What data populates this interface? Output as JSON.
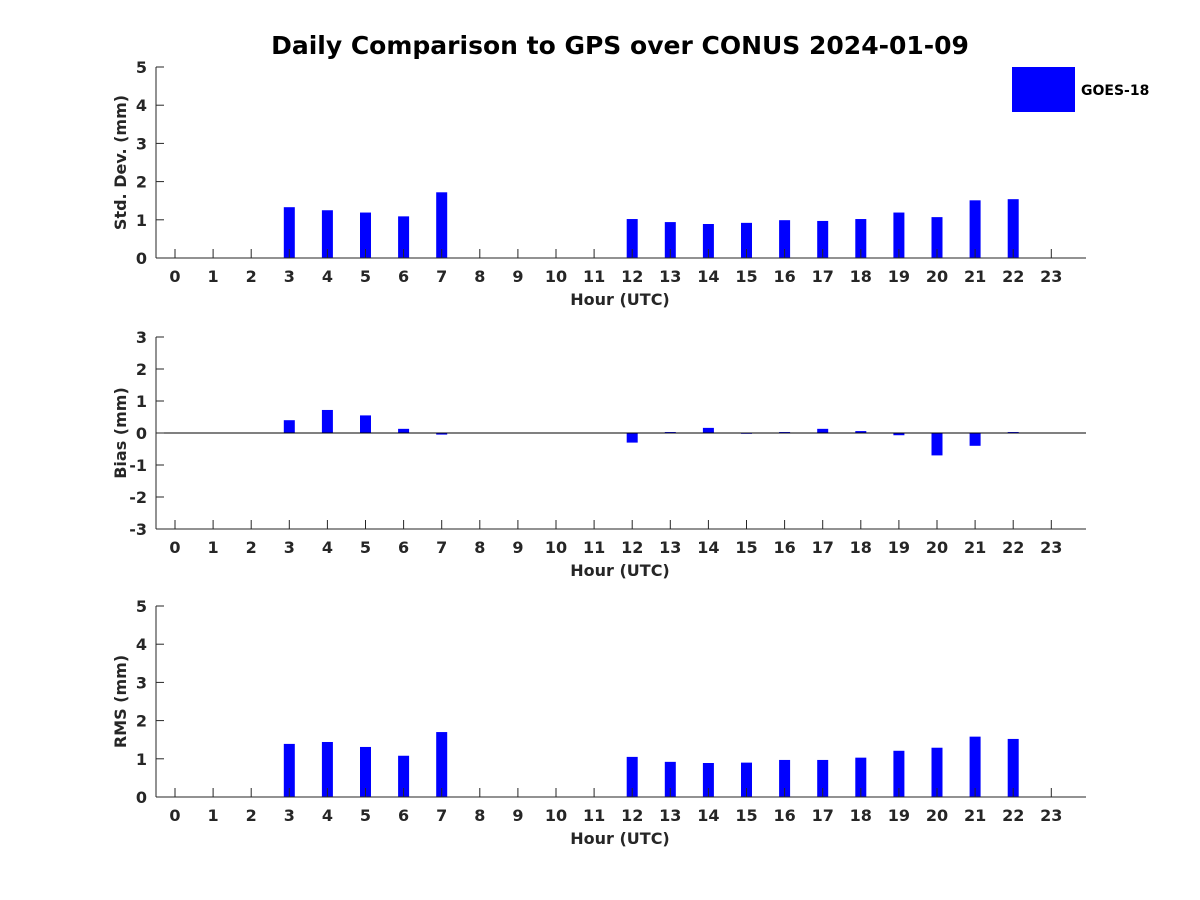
{
  "title": "Daily Comparison to GPS over CONUS 2024-01-09",
  "legend": {
    "label": "GOES-18",
    "placement": "top-right"
  },
  "colors": {
    "bar": "#0000ff",
    "axis": "#262626",
    "text": "#262626",
    "background": "#ffffff"
  },
  "chart_data": [
    {
      "type": "bar",
      "ylabel": "Std. Dev. (mm)",
      "xlabel": "Hour (UTC)",
      "ylim": [
        0,
        5
      ],
      "yticks": [
        "0",
        "1",
        "2",
        "3",
        "4",
        "5"
      ],
      "categories": [
        "0",
        "1",
        "2",
        "3",
        "4",
        "5",
        "6",
        "7",
        "8",
        "9",
        "10",
        "11",
        "12",
        "13",
        "14",
        "15",
        "16",
        "17",
        "18",
        "19",
        "20",
        "21",
        "22",
        "23"
      ],
      "series": [
        {
          "name": "GOES-18",
          "values": [
            null,
            null,
            null,
            1.33,
            1.25,
            1.19,
            1.09,
            1.72,
            null,
            null,
            null,
            null,
            1.02,
            0.94,
            0.89,
            0.92,
            0.99,
            0.97,
            1.02,
            1.19,
            1.07,
            1.51,
            1.54,
            null
          ]
        }
      ]
    },
    {
      "type": "bar",
      "ylabel": "Bias (mm)",
      "xlabel": "Hour (UTC)",
      "ylim": [
        -3,
        3
      ],
      "yticks": [
        "-3",
        "-2",
        "-1",
        "0",
        "1",
        "2",
        "3"
      ],
      "categories": [
        "0",
        "1",
        "2",
        "3",
        "4",
        "5",
        "6",
        "7",
        "8",
        "9",
        "10",
        "11",
        "12",
        "13",
        "14",
        "15",
        "16",
        "17",
        "18",
        "19",
        "20",
        "21",
        "22",
        "23"
      ],
      "series": [
        {
          "name": "GOES-18",
          "values": [
            null,
            null,
            null,
            0.4,
            0.72,
            0.55,
            0.13,
            -0.05,
            null,
            null,
            null,
            null,
            -0.3,
            0.03,
            0.16,
            -0.02,
            0.03,
            0.13,
            0.06,
            -0.07,
            -0.7,
            -0.4,
            0.03,
            null
          ]
        }
      ]
    },
    {
      "type": "bar",
      "ylabel": "RMS (mm)",
      "xlabel": "Hour (UTC)",
      "ylim": [
        0,
        5
      ],
      "yticks": [
        "0",
        "1",
        "2",
        "3",
        "4",
        "5"
      ],
      "categories": [
        "0",
        "1",
        "2",
        "3",
        "4",
        "5",
        "6",
        "7",
        "8",
        "9",
        "10",
        "11",
        "12",
        "13",
        "14",
        "15",
        "16",
        "17",
        "18",
        "19",
        "20",
        "21",
        "22",
        "23"
      ],
      "series": [
        {
          "name": "GOES-18",
          "values": [
            null,
            null,
            null,
            1.39,
            1.44,
            1.31,
            1.08,
            1.7,
            null,
            null,
            null,
            null,
            1.05,
            0.92,
            0.89,
            0.9,
            0.97,
            0.97,
            1.03,
            1.21,
            1.29,
            1.58,
            1.52,
            null
          ]
        }
      ]
    }
  ]
}
